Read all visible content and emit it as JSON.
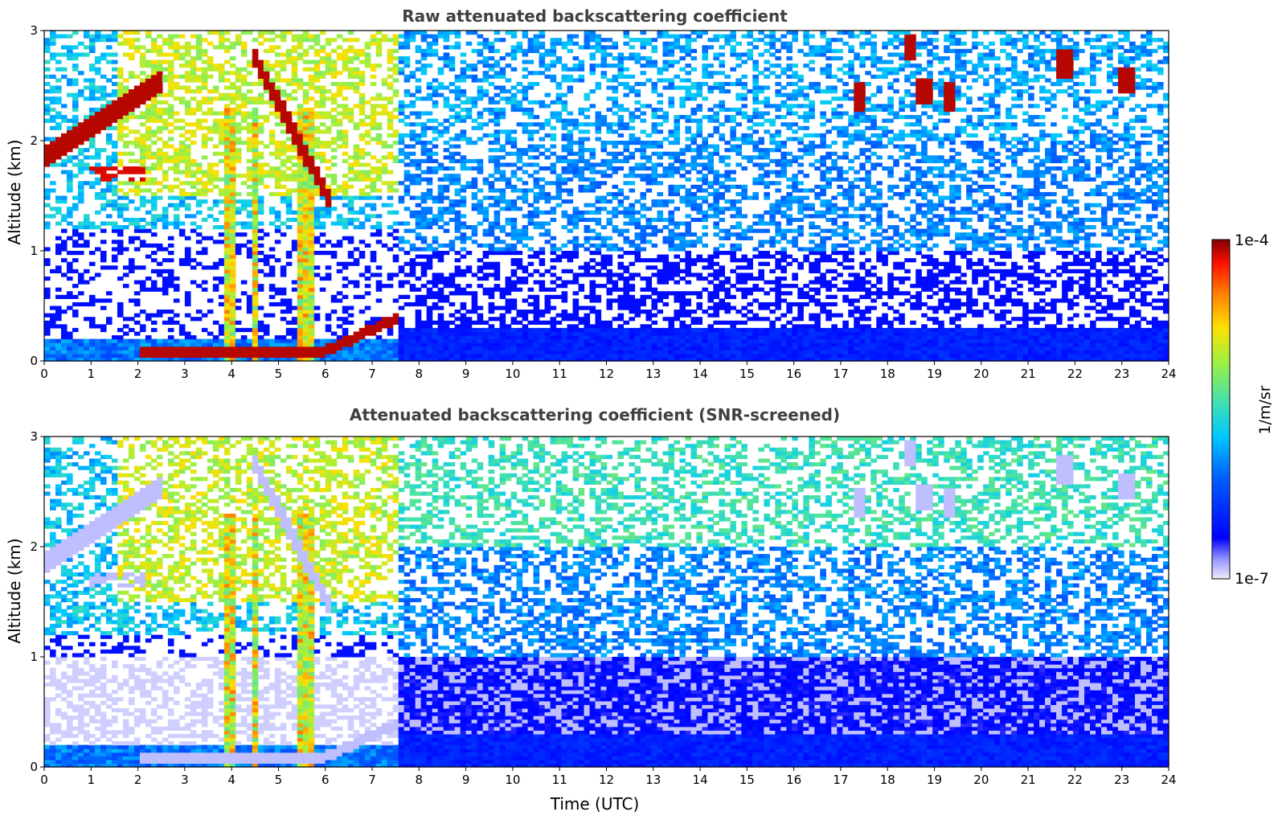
{
  "chart_data": [
    {
      "type": "heatmap",
      "title": "Raw attenuated backscattering coefficient",
      "xlabel": "",
      "ylabel": "Altitude (km)",
      "xlim": [
        0,
        24
      ],
      "ylim": [
        0,
        3
      ],
      "x_ticks": [
        "0",
        "1",
        "2",
        "3",
        "4",
        "5",
        "6",
        "7",
        "8",
        "9",
        "10",
        "11",
        "12",
        "13",
        "14",
        "15",
        "16",
        "17",
        "18",
        "19",
        "20",
        "21",
        "22",
        "23",
        "24"
      ],
      "y_ticks": [
        "0",
        "1",
        "2",
        "3"
      ],
      "scale": "log",
      "color_range": [
        1e-07,
        0.0001
      ],
      "screened": false
    },
    {
      "type": "heatmap",
      "title": "Attenuated backscattering coefficient (SNR-screened)",
      "xlabel": "Time (UTC)",
      "ylabel": "Altitude (km)",
      "xlim": [
        0,
        24
      ],
      "ylim": [
        0,
        3
      ],
      "x_ticks": [
        "0",
        "1",
        "2",
        "3",
        "4",
        "5",
        "6",
        "7",
        "8",
        "9",
        "10",
        "11",
        "12",
        "13",
        "14",
        "15",
        "16",
        "17",
        "18",
        "19",
        "20",
        "21",
        "22",
        "23",
        "24"
      ],
      "y_ticks": [
        "0",
        "1",
        "2",
        "3"
      ],
      "scale": "log",
      "color_range": [
        1e-07,
        0.0001
      ],
      "screened": true
    }
  ],
  "colorbar": {
    "label": "1/m/sr",
    "max_label": "1e-4",
    "min_label": "1e-7",
    "colormap": "jet"
  }
}
